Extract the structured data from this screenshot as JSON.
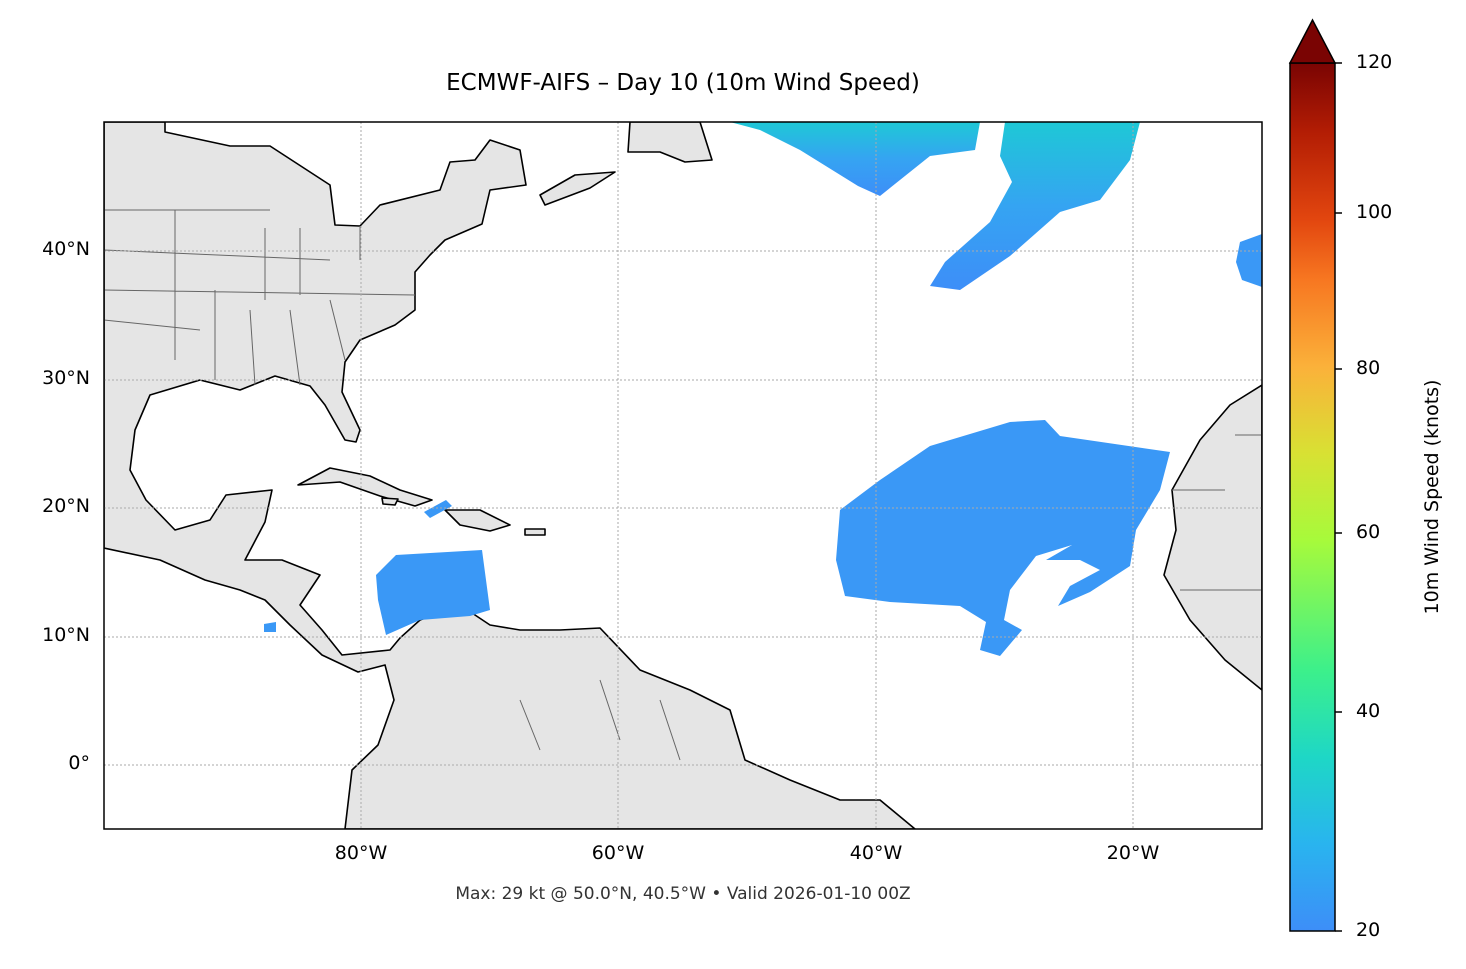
{
  "title": "ECMWF-AIFS – Day 10 (10m Wind Speed)",
  "footer": "Max: 29 kt @ 50.0°N, 40.5°W • Valid 2026-01-10 00Z",
  "map": {
    "projection": "PlateCarree",
    "lon_range": [
      -100,
      -10
    ],
    "lat_range": [
      -5,
      50
    ],
    "gridlines": "dotted",
    "land_color": "#e5e5e5",
    "coast_color": "#000000",
    "border_color": "#666666",
    "x_ticks": [
      "80°W",
      "60°W",
      "40°W",
      "20°W"
    ],
    "y_ticks": [
      "0°",
      "10°N",
      "20°N",
      "30°N",
      "40°N"
    ]
  },
  "colorbar": {
    "label": "10m Wind Speed (knots)",
    "ticks": [
      "20",
      "40",
      "60",
      "80",
      "100",
      "120"
    ],
    "range": [
      20,
      120
    ],
    "extend": "max",
    "colormap": "turbo"
  },
  "fields": {
    "max_wind_kt": 29,
    "low_color": "#3d8ef8",
    "high_color": "#1ec8d6"
  }
}
